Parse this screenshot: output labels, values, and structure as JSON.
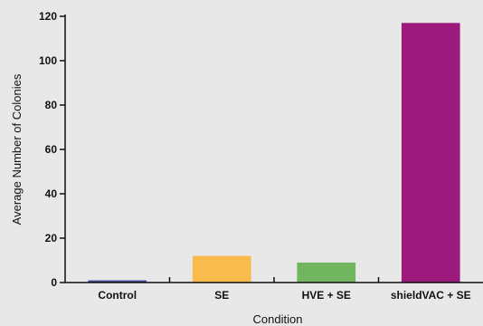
{
  "chart_data": {
    "type": "bar",
    "title": "",
    "xlabel": "Condition",
    "ylabel": "Average Number of Colonies",
    "categories": [
      "Control",
      "SE",
      "HVE + SE",
      "shieldVAC + SE"
    ],
    "values": [
      1,
      12,
      9,
      117
    ],
    "bar_colors": [
      "#4a4a9a",
      "#f9bb4c",
      "#72b560",
      "#9b1a7c"
    ],
    "ylim": [
      0,
      120
    ],
    "yticks": [
      0,
      20,
      40,
      60,
      80,
      100,
      120
    ],
    "grid": false,
    "legend": "none"
  }
}
